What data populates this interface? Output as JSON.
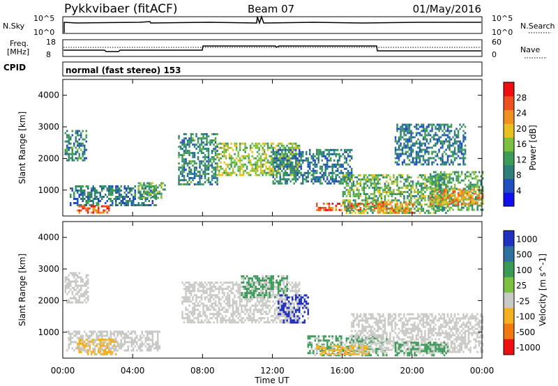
{
  "header": {
    "station": "Pykkvibaer (fitACF)",
    "beam": "Beam 07",
    "date": "01/May/2016"
  },
  "nsky_panel": {
    "left_label": "N.Sky",
    "right_label": "N.Search",
    "left_ticks": [
      "10^5",
      "10^0"
    ],
    "right_ticks": [
      "10^5",
      "10^0"
    ]
  },
  "freq_panel": {
    "left_label_line1": "Freq.",
    "left_label_line2": "[MHz]",
    "right_label": "Nave",
    "left_ticks": [
      "18",
      "8"
    ],
    "right_ticks": [
      "60",
      "0"
    ]
  },
  "cpid": {
    "label": "CPID",
    "value": "normal (fast stereo) 153"
  },
  "x_axis": {
    "label": "Time UT",
    "ticks": [
      "00:00",
      "04:00",
      "08:00",
      "12:00",
      "16:00",
      "20:00",
      "00:00"
    ]
  },
  "chart_data": [
    {
      "type": "heatmap",
      "title": "",
      "xlabel": "Time UT",
      "ylabel": "Slant Range [km]",
      "x_range_hours": [
        0,
        24
      ],
      "ylim": [
        180,
        4500
      ],
      "y_ticks": [
        1000,
        2000,
        3000,
        4000
      ],
      "colorbar": {
        "label": "Power [dB]",
        "min": 0,
        "max": 32,
        "ticks": [
          4,
          8,
          12,
          16,
          20,
          24,
          28
        ],
        "colors": [
          "#1010ee",
          "#2050c0",
          "#2e7e7a",
          "#3c9c58",
          "#7cc040",
          "#e8c020",
          "#f09020",
          "#ee5020",
          "#ee1010"
        ]
      },
      "regions": [
        {
          "t0": 0.1,
          "t1": 1.3,
          "r0": 1950,
          "r1": 2900,
          "value": 10
        },
        {
          "t0": 0.4,
          "t1": 5.3,
          "r0": 500,
          "r1": 1150,
          "value": 9
        },
        {
          "t0": 0.8,
          "t1": 2.6,
          "r0": 300,
          "r1": 520,
          "value": 26
        },
        {
          "t0": 4.3,
          "t1": 5.8,
          "r0": 750,
          "r1": 1250,
          "value": 14
        },
        {
          "t0": 6.6,
          "t1": 8.8,
          "r0": 1200,
          "r1": 2800,
          "value": 10
        },
        {
          "t0": 8.8,
          "t1": 13.5,
          "r0": 1500,
          "r1": 2500,
          "value": 16
        },
        {
          "t0": 12.0,
          "t1": 16.5,
          "r0": 1200,
          "r1": 2300,
          "value": 9
        },
        {
          "t0": 14.5,
          "t1": 18.5,
          "r0": 350,
          "r1": 600,
          "value": 26
        },
        {
          "t0": 16.0,
          "t1": 22.0,
          "r0": 300,
          "r1": 1500,
          "value": 14
        },
        {
          "t0": 18.0,
          "t1": 20.0,
          "r0": 300,
          "r1": 650,
          "value": 24
        },
        {
          "t0": 21.0,
          "t1": 24.0,
          "r0": 350,
          "r1": 1600,
          "value": 13
        },
        {
          "t0": 21.0,
          "t1": 24.0,
          "r0": 550,
          "r1": 1050,
          "value": 22
        },
        {
          "t0": 19.0,
          "t1": 23.0,
          "r0": 1800,
          "r1": 3100,
          "value": 9
        }
      ]
    },
    {
      "type": "heatmap",
      "title": "",
      "xlabel": "Time UT",
      "ylabel": "Slant Range [km]",
      "x_range_hours": [
        0,
        24
      ],
      "ylim": [
        180,
        4500
      ],
      "y_ticks": [
        1000,
        2000,
        3000,
        4000
      ],
      "colorbar": {
        "label": "Velocity [m s^-1]",
        "tick_labels": [
          "1000",
          "500",
          "100",
          "25",
          "-25",
          "-100",
          "-500",
          "-1000"
        ],
        "colors": [
          "#2030c0",
          "#2e70a0",
          "#3a9a58",
          "#7cc040",
          "#c8c8c4",
          "#f4b020",
          "#f07810",
          "#ee1010"
        ]
      },
      "regions": [
        {
          "t0": 0.1,
          "t1": 1.4,
          "r0": 1950,
          "r1": 2900,
          "value": "gray"
        },
        {
          "t0": 0.2,
          "t1": 5.5,
          "r0": 400,
          "r1": 1050,
          "value": "gray"
        },
        {
          "t0": 0.8,
          "t1": 3.0,
          "r0": 300,
          "r1": 800,
          "value": "-100"
        },
        {
          "t0": 6.8,
          "t1": 13.5,
          "r0": 1300,
          "r1": 2600,
          "value": "gray"
        },
        {
          "t0": 10.2,
          "t1": 12.8,
          "r0": 2100,
          "r1": 2800,
          "value": "100"
        },
        {
          "t0": 12.3,
          "t1": 14.0,
          "r0": 1300,
          "r1": 2200,
          "value": "1000"
        },
        {
          "t0": 14.0,
          "t1": 18.5,
          "r0": 300,
          "r1": 900,
          "value": "100"
        },
        {
          "t0": 16.5,
          "t1": 24.0,
          "r0": 400,
          "r1": 1600,
          "value": "gray"
        },
        {
          "t0": 19.0,
          "t1": 22.0,
          "r0": 300,
          "r1": 700,
          "value": "100"
        },
        {
          "t0": 14.5,
          "t1": 17.5,
          "r0": 300,
          "r1": 600,
          "value": "-100"
        }
      ]
    }
  ]
}
